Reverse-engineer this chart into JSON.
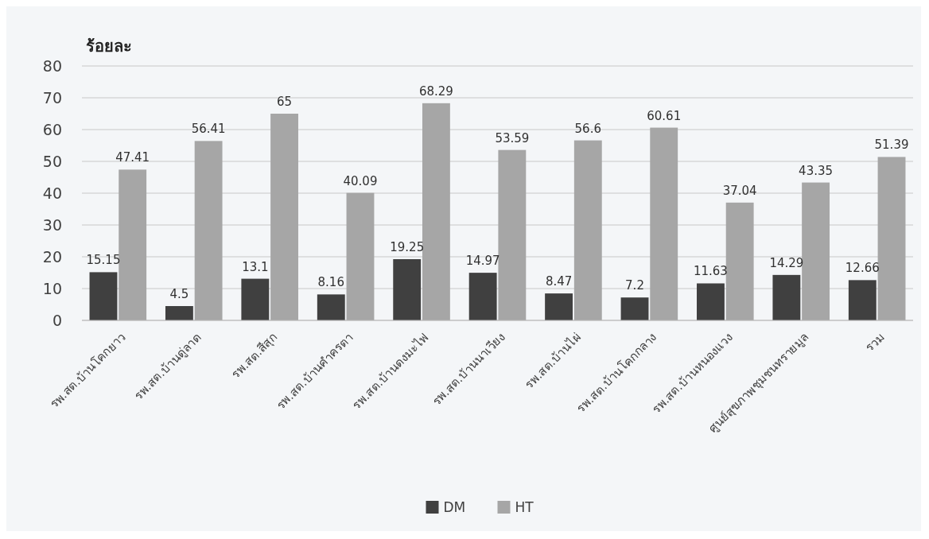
{
  "chart_data": {
    "type": "bar",
    "ylabel": "ร้อยละ",
    "categories": [
      "รพ.สต.บ้านโคกยาว",
      "รพ.สต.บ้านดู่ลาด",
      "รพ.สต.สีสุก",
      "รพ.สต.บ้านคำครตา",
      "รพ.สต.บ้านดงมะไฟ",
      "รพ.สต.บ้านนาเวียง",
      "รพ.สต.บ้านไผ่",
      "รพ.สต.บ้านโคกกลาง",
      "รพ.สต.บ้านหนองแวง",
      "ศูนย์สุขภาพชุมชนทรายมูล",
      "รวม"
    ],
    "series": [
      {
        "name": "DM",
        "color": "#404040",
        "values": [
          15.15,
          4.5,
          13.1,
          8.16,
          19.25,
          14.97,
          8.47,
          7.2,
          11.63,
          14.29,
          12.66
        ]
      },
      {
        "name": "HT",
        "color": "#a6a6a6",
        "values": [
          47.41,
          56.41,
          65,
          40.09,
          68.29,
          53.59,
          56.6,
          60.61,
          37.04,
          43.35,
          51.39
        ]
      }
    ],
    "ylim": [
      0,
      80
    ],
    "yticks": [
      0,
      10,
      20,
      30,
      40,
      50,
      60,
      70,
      80
    ],
    "grid": "y",
    "legend": "bottom",
    "data_labels": true
  }
}
